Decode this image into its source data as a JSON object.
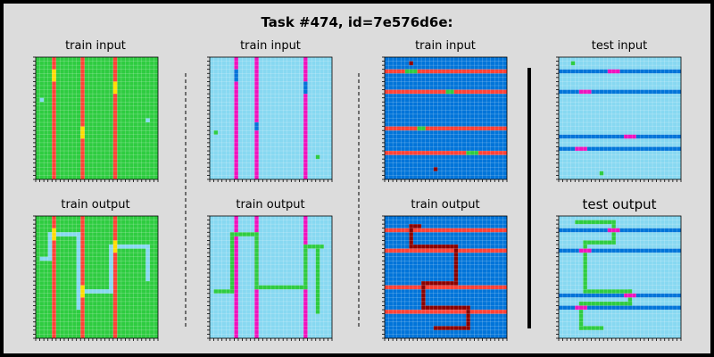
{
  "title": "Task #474, id=7e576d6e:",
  "panels": [
    {
      "label": "train input",
      "bg": "#2ECC40"
    },
    {
      "label": "train input",
      "bg": "#87D8F1"
    },
    {
      "label": "train input",
      "bg": "#0074D9"
    },
    {
      "label": "test input",
      "bg": "#87D8F1"
    },
    {
      "label": "train output",
      "bg": "#2ECC40"
    },
    {
      "label": "train output",
      "bg": "#87D8F1"
    },
    {
      "label": "train output",
      "bg": "#0074D9"
    },
    {
      "label": "test output",
      "bg": "#87D8F1"
    }
  ],
  "colors": {
    "green": "#2ECC40",
    "light_blue": "#87D8F1",
    "blue": "#0074D9",
    "red": "#FF4136",
    "yellow": "#FFDC00",
    "magenta": "#F012BE",
    "maroon": "#85144B",
    "dark_red": "#8B0000",
    "page_bg": "#dcdcdc"
  }
}
